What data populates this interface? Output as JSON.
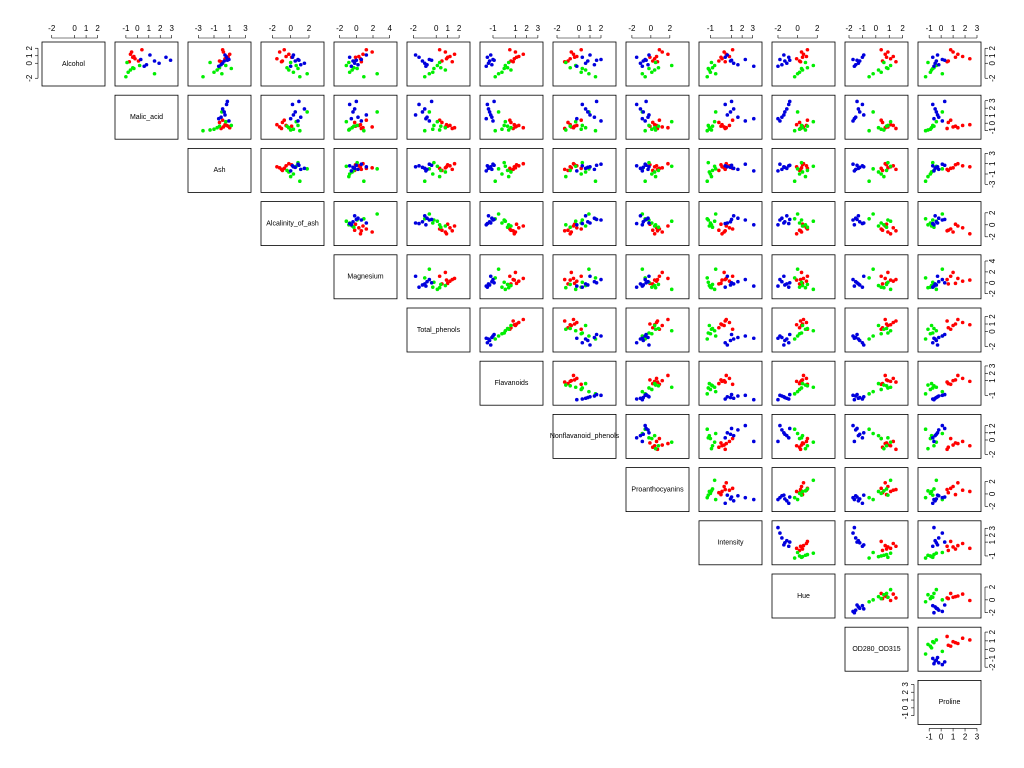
{
  "chart_data": {
    "type": "scatter_matrix",
    "variables": [
      {
        "name": "Alcohol",
        "lim": [
          -2.5,
          2.3
        ],
        "ticks": [
          -2,
          0,
          1,
          2
        ]
      },
      {
        "name": "Malic_acid",
        "lim": [
          -1.6,
          3.2
        ],
        "ticks": [
          -1,
          0,
          1,
          2,
          3
        ]
      },
      {
        "name": "Ash",
        "lim": [
          -3.8,
          3.2
        ],
        "ticks": [
          -3,
          -1,
          1,
          3
        ]
      },
      {
        "name": "Alcalinity_of_ash",
        "lim": [
          -2.8,
          3.2
        ],
        "ticks": [
          -2,
          0,
          2
        ]
      },
      {
        "name": "Magnesium",
        "lim": [
          -2.2,
          4.4
        ],
        "ticks": [
          -2,
          0,
          2,
          4
        ]
      },
      {
        "name": "Total_phenols",
        "lim": [
          -2.2,
          2.6
        ],
        "ticks": [
          -2,
          0,
          1,
          2
        ]
      },
      {
        "name": "Flavanoids",
        "lim": [
          -1.8,
          3.1
        ],
        "ticks": [
          -1,
          1,
          2,
          3
        ]
      },
      {
        "name": "Nonflavanoid_phenols",
        "lim": [
          -2.0,
          3.0
        ],
        "ticks": [
          -2,
          0,
          1,
          2
        ]
      },
      {
        "name": "Proanthocyanins",
        "lim": [
          -2.2,
          3.6
        ],
        "ticks": [
          -2,
          0,
          2
        ]
      },
      {
        "name": "Intensity",
        "lim": [
          -1.7,
          3.5
        ],
        "ticks": [
          -1,
          1,
          2,
          3
        ]
      },
      {
        "name": "Hue",
        "lim": [
          -2.2,
          3.4
        ],
        "ticks": [
          -2,
          0,
          2
        ]
      },
      {
        "name": "OD280_OD315",
        "lim": [
          -2.0,
          2.1
        ],
        "ticks": [
          -2,
          -1,
          0,
          1,
          2
        ]
      },
      {
        "name": "Proline",
        "lim": [
          -1.6,
          3.0
        ],
        "ticks": [
          -1,
          0,
          1,
          2,
          3
        ]
      }
    ],
    "series": [
      {
        "color": "#ff0000",
        "values": [
          [
            1.5,
            0.9,
            0.3,
            1.2,
            0.6,
            1.8,
            0.8,
            0.2
          ],
          [
            -0.5,
            -0.3,
            0.1,
            -0.6,
            -0.2,
            0.4,
            -0.4,
            -0.7
          ],
          [
            0.2,
            0.6,
            -0.3,
            1.0,
            0.4,
            0.1,
            0.8,
            -0.1
          ],
          [
            -1.2,
            -0.5,
            -0.9,
            -0.2,
            -1.5,
            -0.7,
            0.1,
            -1.0
          ],
          [
            1.9,
            0.3,
            -0.2,
            0.8,
            0.5,
            1.2,
            -0.1,
            0.6
          ],
          [
            0.8,
            1.2,
            0.5,
            1.6,
            0.9,
            0.3,
            1.0,
            1.4
          ],
          [
            1.0,
            1.3,
            0.6,
            1.7,
            0.9,
            0.5,
            1.1,
            0.8
          ],
          [
            -0.7,
            -0.2,
            -1.0,
            -0.5,
            -0.8,
            0.2,
            -0.4,
            -1.3
          ],
          [
            1.2,
            0.6,
            0.2,
            1.8,
            0.4,
            0.9,
            -0.1,
            0.7
          ],
          [
            0.3,
            0.8,
            -0.2,
            0.5,
            0.1,
            1.1,
            0.0,
            0.4
          ],
          [
            0.4,
            0.9,
            0.2,
            0.6,
            -0.1,
            1.0,
            0.5,
            0.3
          ],
          [
            0.9,
            1.3,
            0.5,
            0.7,
            1.1,
            0.4,
            0.8,
            1.5
          ],
          [
            1.0,
            1.8,
            0.6,
            1.4,
            2.4,
            0.8,
            1.2,
            0.5
          ]
        ]
      },
      {
        "color": "#00ee00",
        "values": [
          [
            -1.2,
            -0.6,
            -1.8,
            -0.3,
            -0.9,
            -1.4,
            0.1,
            -0.7
          ],
          [
            -0.8,
            -0.4,
            -1.0,
            0.2,
            -0.6,
            1.5,
            -0.9,
            -0.3
          ],
          [
            -1.0,
            -0.3,
            -2.4,
            0.5,
            -0.6,
            0.0,
            -1.5,
            1.2
          ],
          [
            0.3,
            -0.4,
            1.0,
            0.6,
            -0.2,
            1.8,
            0.0,
            0.8
          ],
          [
            -0.8,
            -0.3,
            0.9,
            -1.2,
            -0.5,
            2.5,
            -0.9,
            0.1
          ],
          [
            -0.3,
            0.4,
            -1.0,
            0.1,
            0.8,
            -0.6,
            0.3,
            -0.2
          ],
          [
            -0.2,
            0.3,
            -0.8,
            0.1,
            0.6,
            -0.5,
            0.4,
            0.0
          ],
          [
            0.2,
            -0.8,
            1.5,
            -0.3,
            0.6,
            0.9,
            -1.2,
            0.3
          ],
          [
            0.1,
            0.8,
            -0.6,
            2.2,
            0.4,
            -0.9,
            0.5,
            -0.2
          ],
          [
            -1.0,
            -0.8,
            -1.3,
            -0.6,
            -1.1,
            -0.5,
            -0.9,
            -1.2
          ],
          [
            0.2,
            1.0,
            -0.3,
            1.6,
            0.5,
            0.0,
            0.8,
            0.4
          ],
          [
            0.4,
            0.8,
            -0.5,
            1.1,
            0.2,
            -0.2,
            0.6,
            0.9
          ],
          [
            -0.9,
            -0.6,
            -1.3,
            -0.4,
            -0.8,
            0.1,
            -1.1,
            -0.7
          ]
        ]
      },
      {
        "color": "#0000dd",
        "values": [
          [
            0.3,
            -0.2,
            0.8,
            0.5,
            0.0,
            1.1,
            -0.4,
            0.4
          ],
          [
            1.5,
            0.8,
            2.5,
            0.3,
            1.9,
            1.1,
            0.6,
            2.9
          ],
          [
            0.3,
            -0.1,
            0.6,
            0.9,
            0.1,
            0.4,
            -0.4,
            0.7
          ],
          [
            0.5,
            1.1,
            0.2,
            0.8,
            1.5,
            0.3,
            0.0,
            0.9
          ],
          [
            -0.4,
            0.2,
            -0.8,
            0.6,
            -0.2,
            1.2,
            -0.6,
            0.0
          ],
          [
            -1.2,
            -0.8,
            -1.5,
            -0.6,
            -1.0,
            -1.8,
            -0.9,
            -0.4
          ],
          [
            -1.3,
            -1.1,
            -1.5,
            -1.0,
            -1.4,
            -1.2,
            -1.6,
            -0.9
          ],
          [
            0.8,
            1.4,
            0.3,
            2.0,
            0.6,
            1.0,
            -0.2,
            1.6
          ],
          [
            -0.8,
            -0.3,
            -1.5,
            -0.6,
            -1.1,
            -0.2,
            -0.9,
            -0.5
          ],
          [
            0.9,
            1.6,
            0.4,
            2.3,
            1.2,
            0.6,
            3.1,
            1.0
          ],
          [
            -1.3,
            -1.6,
            -0.9,
            -1.8,
            -1.1,
            -1.4,
            -2.0,
            -0.8
          ],
          [
            -1.2,
            -1.5,
            -1.0,
            -1.7,
            -1.3,
            -0.9,
            -1.6,
            -1.4
          ],
          [
            -0.4,
            -0.2,
            -0.7,
            0.1,
            -0.5,
            -0.3,
            -0.6,
            0.3
          ]
        ]
      }
    ]
  }
}
